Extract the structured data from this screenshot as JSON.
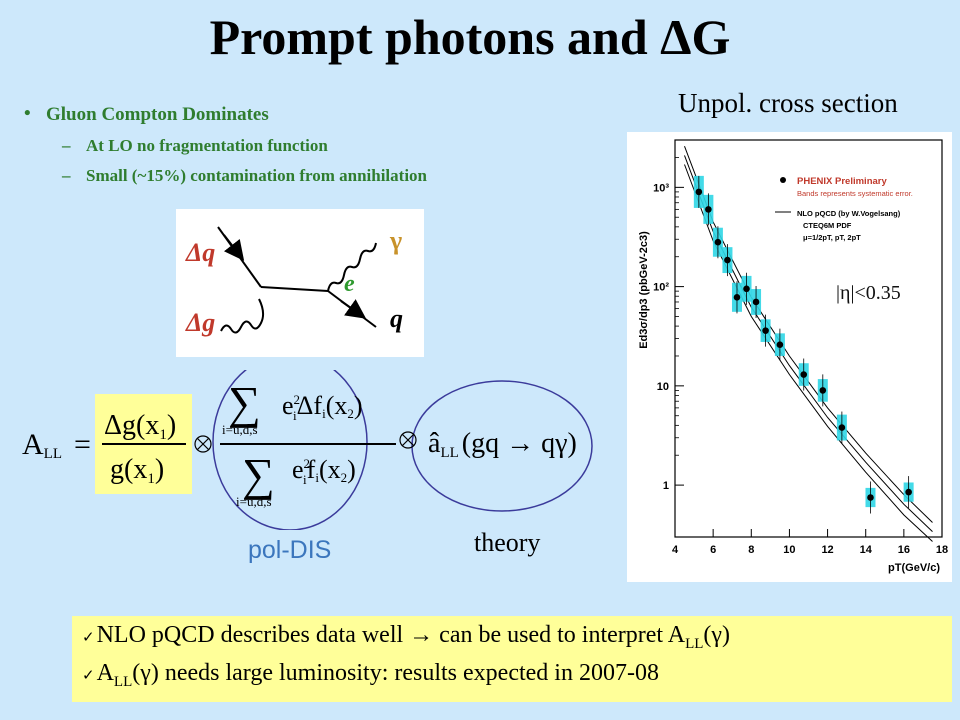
{
  "title": "Prompt photons and ΔG",
  "bullets": {
    "main": "Gluon Compton Dominates",
    "sub1": "At LO no fragmentation function",
    "sub2": "Small (~15%) contamination from annihilation"
  },
  "unpol_label": "Unpol. cross section",
  "feynman": {
    "dq": "Δq",
    "dg": "Δg",
    "gamma": "γ",
    "q": "q",
    "e": "e"
  },
  "formula": {
    "all": "A",
    "all_sub": "LL",
    "num": "Δg(x",
    "num_sub": "1",
    "den": "g(x",
    "den_sub": "1",
    "sum_top_term": "e",
    "sum_top_rest": "Δf",
    "sum_bot_rest": "f",
    "sum_index": "i=u,d,s",
    "x2": "(x",
    "x2_sub": "2",
    "theory_term": "â",
    "theory_sub": "LL",
    "theory_rest": "(gq → qγ)"
  },
  "labels": {
    "theory": "theory",
    "pol_dis": "pol-DIS",
    "eta": "|η|<0.35"
  },
  "chart_data": {
    "type": "scatter",
    "xlabel": "pT(GeV/c)",
    "ylabel": "Ed3σ/dp3 (pbGeV-2c3)",
    "xlim": [
      4,
      18
    ],
    "ylim": [
      0.3,
      3000
    ],
    "yscale": "log",
    "x_ticks": [
      4,
      6,
      8,
      10,
      12,
      14,
      16,
      18
    ],
    "y_ticks": [
      {
        "v": 1,
        "label": "1"
      },
      {
        "v": 10,
        "label": "10"
      },
      {
        "v": 100,
        "label": "10²"
      },
      {
        "v": 1000,
        "label": "10³"
      }
    ],
    "legend": {
      "entry1": "PHENIX Preliminary",
      "entry1_sub": "Bands represents systematic error.",
      "entry2": "NLO pQCD (by W.Vogelsang)",
      "entry2_sub1": "CTEQ6M PDF",
      "entry2_sub2": "μ=1/2pT, pT, 2pT"
    },
    "points": [
      {
        "x": 5.25,
        "y": 900,
        "sys": 1.45
      },
      {
        "x": 5.75,
        "y": 600,
        "sys": 1.4
      },
      {
        "x": 6.25,
        "y": 280,
        "sys": 1.4
      },
      {
        "x": 6.75,
        "y": 185,
        "sys": 1.35
      },
      {
        "x": 7.25,
        "y": 78,
        "sys": 1.4
      },
      {
        "x": 7.75,
        "y": 95,
        "sys": 1.35
      },
      {
        "x": 8.25,
        "y": 70,
        "sys": 1.35
      },
      {
        "x": 8.75,
        "y": 36,
        "sys": 1.3
      },
      {
        "x": 9.5,
        "y": 26,
        "sys": 1.3
      },
      {
        "x": 10.75,
        "y": 13,
        "sys": 1.3
      },
      {
        "x": 11.75,
        "y": 9,
        "sys": 1.3
      },
      {
        "x": 12.75,
        "y": 3.8,
        "sys": 1.35
      },
      {
        "x": 14.25,
        "y": 0.75,
        "sys": 1.25
      },
      {
        "x": 16.25,
        "y": 0.85,
        "sys": 1.25
      }
    ],
    "curves": [
      {
        "name": "",
        "x": [
          4.5,
          6,
          8,
          10,
          12,
          14,
          16,
          17.5
        ],
        "y": [
          2600,
          450,
          78,
          20,
          6,
          2.1,
          0.8,
          0.42
        ]
      },
      {
        "name": "",
        "x": [
          4.5,
          6,
          8,
          10,
          12,
          14,
          16,
          17.5
        ],
        "y": [
          2100,
          360,
          62,
          16,
          4.8,
          1.7,
          0.64,
          0.34
        ]
      },
      {
        "name": "",
        "x": [
          4.5,
          6,
          8,
          10,
          12,
          14,
          16,
          17.5
        ],
        "y": [
          1700,
          290,
          50,
          13,
          3.9,
          1.35,
          0.5,
          0.27
        ]
      }
    ]
  },
  "conclusions": {
    "check": "✓",
    "line1_a": "NLO pQCD describes data well ",
    "arrow": "→",
    "line1_b": " can be used to interpret A",
    "line1_sub": "LL",
    "line1_c": "(γ)",
    "line2_a": "A",
    "line2_sub": "LL",
    "line2_b": "(γ) needs large luminosity: results expected in 2007-08"
  }
}
